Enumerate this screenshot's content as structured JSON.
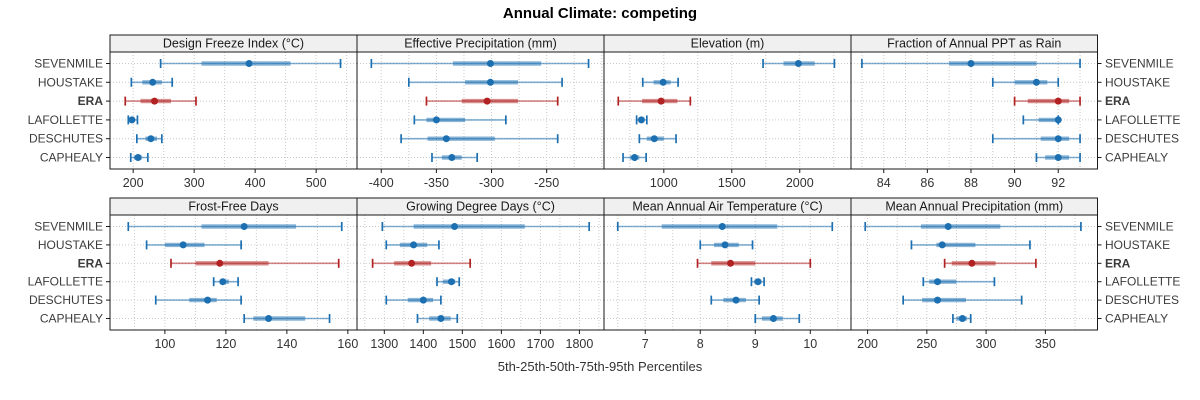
{
  "title": "Annual Climate: competing",
  "caption": "5th-25th-50th-75th-95th Percentiles",
  "sites": [
    "SEVENMILE",
    "HOUSTAKE",
    "ERA",
    "LAFOLLETTE",
    "DESCHUTES",
    "CAPHEALY"
  ],
  "highlight_site": "ERA",
  "colors": {
    "series": "#1c6fb0",
    "highlight": "#b22222",
    "strip_bg": "#f0f0f0",
    "panel_border": "#1a1a1a",
    "grid": "#c9c9c9",
    "text": "#333333"
  },
  "chart_data": {
    "type": "dotplot-percentiles",
    "title": "Annual Climate: competing",
    "caption": "5th-25th-50th-75th-95th Percentiles",
    "percentile_labels": [
      "5th",
      "25th",
      "50th",
      "75th",
      "95th"
    ],
    "rows": [
      "SEVENMILE",
      "HOUSTAKE",
      "ERA",
      "LAFOLLETTE",
      "DESCHUTES",
      "CAPHEALY"
    ],
    "highlight_row": "ERA",
    "legend_position": "none",
    "grid": "dotted",
    "panels": [
      {
        "title": "Design Freeze Index (°C)",
        "row": 0,
        "col": 0,
        "xlim": [
          162,
          567
        ],
        "ticks": [
          200,
          300,
          400,
          500
        ],
        "grid_step": 50,
        "values": {
          "SEVENMILE": [
            245,
            312,
            390,
            458,
            540
          ],
          "HOUSTAKE": [
            197,
            215,
            232,
            247,
            264
          ],
          "ERA": [
            187,
            212,
            235,
            262,
            303
          ],
          "LAFOLLETTE": [
            192,
            195,
            198,
            202,
            207
          ],
          "DESCHUTES": [
            206,
            220,
            229,
            239,
            247
          ],
          "CAPHEALY": [
            196,
            201,
            208,
            214,
            224
          ]
        }
      },
      {
        "title": "Effective Precipitation (mm)",
        "row": 0,
        "col": 1,
        "xlim": [
          -422,
          -198
        ],
        "ticks": [
          -400,
          -350,
          -300,
          -250
        ],
        "grid_step": 25,
        "values": {
          "SEVENMILE": [
            -409,
            -335,
            -301,
            -255,
            -212
          ],
          "HOUSTAKE": [
            -375,
            -324,
            -301,
            -276,
            -236
          ],
          "ERA": [
            -359,
            -327,
            -304,
            -276,
            -240
          ],
          "LAFOLLETTE": [
            -370,
            -359,
            -350,
            -324,
            -287
          ],
          "DESCHUTES": [
            -382,
            -358,
            -341,
            -297,
            -240
          ],
          "CAPHEALY": [
            -354,
            -345,
            -336,
            -327,
            -313
          ]
        }
      },
      {
        "title": "Elevation (m)",
        "row": 0,
        "col": 2,
        "xlim": [
          560,
          2377
        ],
        "ticks": [
          1000,
          1500,
          2000
        ],
        "grid_step": 250,
        "values": {
          "SEVENMILE": [
            1730,
            1880,
            1990,
            2110,
            2255
          ],
          "HOUSTAKE": [
            845,
            925,
            995,
            1050,
            1105
          ],
          "ERA": [
            665,
            840,
            980,
            1100,
            1195
          ],
          "LAFOLLETTE": [
            800,
            815,
            835,
            858,
            875
          ],
          "DESCHUTES": [
            820,
            875,
            930,
            1000,
            1090
          ],
          "CAPHEALY": [
            700,
            750,
            785,
            820,
            870
          ]
        }
      },
      {
        "title": "Fraction of Annual PPT as Rain",
        "row": 0,
        "col": 3,
        "xlim": [
          82.5,
          93.8
        ],
        "ticks": [
          84,
          86,
          88,
          90,
          92
        ],
        "grid_step": 1,
        "values": {
          "SEVENMILE": [
            83,
            87,
            88,
            91,
            93
          ],
          "HOUSTAKE": [
            89,
            90,
            91,
            91.5,
            92
          ],
          "ERA": [
            90,
            90.6,
            92,
            92.5,
            93
          ],
          "LAFOLLETTE": [
            90.4,
            91.1,
            92,
            92,
            92
          ],
          "DESCHUTES": [
            89,
            91.2,
            92,
            92.5,
            93
          ],
          "CAPHEALY": [
            91,
            91.4,
            92,
            92.5,
            93
          ]
        }
      },
      {
        "title": "Frost-Free Days",
        "row": 1,
        "col": 0,
        "xlim": [
          82,
          163
        ],
        "ticks": [
          100,
          120,
          140,
          160
        ],
        "grid_step": 10,
        "values": {
          "SEVENMILE": [
            88,
            112,
            126,
            143,
            158
          ],
          "HOUSTAKE": [
            94,
            100,
            106,
            113,
            125
          ],
          "ERA": [
            102,
            110,
            118,
            134,
            157
          ],
          "LAFOLLETTE": [
            116,
            118,
            119,
            121,
            124
          ],
          "DESCHUTES": [
            97,
            108,
            114,
            117,
            125
          ],
          "CAPHEALY": [
            126,
            129,
            134,
            146,
            154
          ]
        }
      },
      {
        "title": "Growing Degree Days (°C)",
        "row": 1,
        "col": 1,
        "xlim": [
          1230,
          1863
        ],
        "ticks": [
          1300,
          1400,
          1500,
          1600,
          1700,
          1800
        ],
        "grid_step": 50,
        "values": {
          "SEVENMILE": [
            1295,
            1375,
            1480,
            1660,
            1825
          ],
          "HOUSTAKE": [
            1305,
            1340,
            1375,
            1410,
            1440
          ],
          "ERA": [
            1270,
            1325,
            1370,
            1420,
            1520
          ],
          "LAFOLLETTE": [
            1435,
            1450,
            1472,
            1482,
            1492
          ],
          "DESCHUTES": [
            1305,
            1360,
            1400,
            1425,
            1445
          ],
          "CAPHEALY": [
            1385,
            1415,
            1445,
            1470,
            1487
          ]
        }
      },
      {
        "title": "Mean Annual Air Temperature (°C)",
        "row": 1,
        "col": 2,
        "xlim": [
          6.25,
          10.74
        ],
        "ticks": [
          7,
          8,
          9,
          10
        ],
        "grid_step": 0.5,
        "values": {
          "SEVENMILE": [
            6.5,
            7.3,
            8.4,
            9.4,
            10.4
          ],
          "HOUSTAKE": [
            8.0,
            8.25,
            8.45,
            8.7,
            8.95
          ],
          "ERA": [
            7.95,
            8.2,
            8.55,
            9.0,
            10.0
          ],
          "LAFOLLETTE": [
            8.93,
            8.98,
            9.05,
            9.11,
            9.16
          ],
          "DESCHUTES": [
            8.2,
            8.42,
            8.65,
            8.83,
            9.07
          ],
          "CAPHEALY": [
            9.0,
            9.12,
            9.33,
            9.5,
            9.8
          ]
        }
      },
      {
        "title": "Mean Annual Precipitation (mm)",
        "row": 1,
        "col": 3,
        "xlim": [
          186,
          394
        ],
        "ticks": [
          200,
          250,
          300,
          350
        ],
        "grid_step": 25,
        "values": {
          "SEVENMILE": [
            198,
            245,
            268,
            312,
            380
          ],
          "HOUSTAKE": [
            237,
            258,
            263,
            291,
            337
          ],
          "ERA": [
            265,
            271,
            288,
            308,
            342
          ],
          "LAFOLLETTE": [
            247,
            252,
            259,
            275,
            307
          ],
          "DESCHUTES": [
            230,
            246,
            259,
            283,
            330
          ],
          "CAPHEALY": [
            272,
            275,
            280,
            284,
            287
          ]
        }
      }
    ]
  }
}
